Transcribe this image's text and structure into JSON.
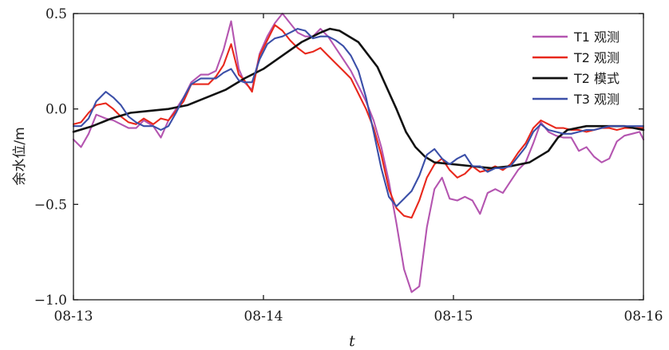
{
  "chart_data": {
    "type": "line",
    "xlabel": "t",
    "ylabel": "余水位/m",
    "xlim": [
      0,
      3
    ],
    "ylim": [
      -1.0,
      0.5
    ],
    "x_ticks": [
      0,
      1,
      2,
      3
    ],
    "x_tick_labels": [
      "08-13",
      "08-14",
      "08-15",
      "08-16"
    ],
    "y_ticks": [
      0.5,
      0.0,
      -0.5,
      -1.0
    ],
    "y_tick_labels": [
      "0.5",
      "0.0",
      "−0.5",
      "−1.0"
    ],
    "legend_position": "top-right",
    "grid": false,
    "series": [
      {
        "name": "T1 观测",
        "color": "#b455b0",
        "points": [
          [
            0,
            -0.16
          ],
          [
            0.04,
            -0.2
          ],
          [
            0.08,
            -0.13
          ],
          [
            0.12,
            -0.03
          ],
          [
            0.17,
            -0.05
          ],
          [
            0.21,
            -0.06
          ],
          [
            0.25,
            -0.08
          ],
          [
            0.29,
            -0.1
          ],
          [
            0.33,
            -0.1
          ],
          [
            0.37,
            -0.06
          ],
          [
            0.42,
            -0.09
          ],
          [
            0.46,
            -0.15
          ],
          [
            0.5,
            -0.06
          ],
          [
            0.54,
            0.0
          ],
          [
            0.58,
            0.06
          ],
          [
            0.62,
            0.14
          ],
          [
            0.67,
            0.18
          ],
          [
            0.71,
            0.18
          ],
          [
            0.75,
            0.2
          ],
          [
            0.79,
            0.31
          ],
          [
            0.83,
            0.46
          ],
          [
            0.87,
            0.21
          ],
          [
            0.9,
            0.14
          ],
          [
            0.94,
            0.1
          ],
          [
            0.98,
            0.29
          ],
          [
            1.02,
            0.38
          ],
          [
            1.06,
            0.45
          ],
          [
            1.1,
            0.5
          ],
          [
            1.14,
            0.45
          ],
          [
            1.18,
            0.4
          ],
          [
            1.22,
            0.38
          ],
          [
            1.26,
            0.38
          ],
          [
            1.3,
            0.42
          ],
          [
            1.34,
            0.38
          ],
          [
            1.38,
            0.32
          ],
          [
            1.42,
            0.26
          ],
          [
            1.46,
            0.2
          ],
          [
            1.5,
            0.12
          ],
          [
            1.54,
            0.04
          ],
          [
            1.58,
            -0.06
          ],
          [
            1.62,
            -0.2
          ],
          [
            1.66,
            -0.38
          ],
          [
            1.7,
            -0.6
          ],
          [
            1.74,
            -0.84
          ],
          [
            1.78,
            -0.96
          ],
          [
            1.82,
            -0.93
          ],
          [
            1.86,
            -0.62
          ],
          [
            1.9,
            -0.42
          ],
          [
            1.94,
            -0.36
          ],
          [
            1.98,
            -0.47
          ],
          [
            2.02,
            -0.48
          ],
          [
            2.06,
            -0.46
          ],
          [
            2.1,
            -0.48
          ],
          [
            2.14,
            -0.55
          ],
          [
            2.18,
            -0.44
          ],
          [
            2.22,
            -0.42
          ],
          [
            2.26,
            -0.44
          ],
          [
            2.3,
            -0.38
          ],
          [
            2.34,
            -0.32
          ],
          [
            2.38,
            -0.28
          ],
          [
            2.42,
            -0.18
          ],
          [
            2.46,
            -0.07
          ],
          [
            2.5,
            -0.12
          ],
          [
            2.54,
            -0.14
          ],
          [
            2.58,
            -0.15
          ],
          [
            2.62,
            -0.15
          ],
          [
            2.66,
            -0.22
          ],
          [
            2.7,
            -0.2
          ],
          [
            2.74,
            -0.25
          ],
          [
            2.78,
            -0.28
          ],
          [
            2.82,
            -0.26
          ],
          [
            2.86,
            -0.17
          ],
          [
            2.9,
            -0.14
          ],
          [
            2.94,
            -0.13
          ],
          [
            2.98,
            -0.12
          ],
          [
            3.0,
            -0.16
          ]
        ]
      },
      {
        "name": "T2 观测",
        "color": "#e8281c",
        "points": [
          [
            0,
            -0.08
          ],
          [
            0.04,
            -0.07
          ],
          [
            0.08,
            -0.02
          ],
          [
            0.12,
            0.02
          ],
          [
            0.17,
            0.03
          ],
          [
            0.21,
            0.0
          ],
          [
            0.25,
            -0.04
          ],
          [
            0.29,
            -0.07
          ],
          [
            0.33,
            -0.08
          ],
          [
            0.37,
            -0.05
          ],
          [
            0.42,
            -0.08
          ],
          [
            0.46,
            -0.05
          ],
          [
            0.5,
            -0.06
          ],
          [
            0.54,
            -0.01
          ],
          [
            0.58,
            0.04
          ],
          [
            0.62,
            0.13
          ],
          [
            0.67,
            0.13
          ],
          [
            0.71,
            0.13
          ],
          [
            0.75,
            0.17
          ],
          [
            0.79,
            0.23
          ],
          [
            0.83,
            0.34
          ],
          [
            0.87,
            0.18
          ],
          [
            0.9,
            0.15
          ],
          [
            0.94,
            0.09
          ],
          [
            0.98,
            0.28
          ],
          [
            1.02,
            0.36
          ],
          [
            1.06,
            0.44
          ],
          [
            1.1,
            0.41
          ],
          [
            1.14,
            0.36
          ],
          [
            1.18,
            0.32
          ],
          [
            1.22,
            0.29
          ],
          [
            1.26,
            0.3
          ],
          [
            1.3,
            0.32
          ],
          [
            1.34,
            0.28
          ],
          [
            1.38,
            0.24
          ],
          [
            1.42,
            0.2
          ],
          [
            1.46,
            0.16
          ],
          [
            1.5,
            0.08
          ],
          [
            1.54,
            0.0
          ],
          [
            1.58,
            -0.1
          ],
          [
            1.62,
            -0.24
          ],
          [
            1.66,
            -0.42
          ],
          [
            1.7,
            -0.52
          ],
          [
            1.74,
            -0.56
          ],
          [
            1.78,
            -0.57
          ],
          [
            1.82,
            -0.48
          ],
          [
            1.86,
            -0.36
          ],
          [
            1.9,
            -0.29
          ],
          [
            1.94,
            -0.26
          ],
          [
            1.98,
            -0.32
          ],
          [
            2.02,
            -0.36
          ],
          [
            2.06,
            -0.34
          ],
          [
            2.1,
            -0.3
          ],
          [
            2.14,
            -0.33
          ],
          [
            2.18,
            -0.32
          ],
          [
            2.22,
            -0.3
          ],
          [
            2.26,
            -0.32
          ],
          [
            2.3,
            -0.29
          ],
          [
            2.34,
            -0.23
          ],
          [
            2.38,
            -0.18
          ],
          [
            2.42,
            -0.1
          ],
          [
            2.46,
            -0.06
          ],
          [
            2.5,
            -0.08
          ],
          [
            2.54,
            -0.1
          ],
          [
            2.58,
            -0.1
          ],
          [
            2.62,
            -0.11
          ],
          [
            2.66,
            -0.11
          ],
          [
            2.7,
            -0.12
          ],
          [
            2.74,
            -0.11
          ],
          [
            2.78,
            -0.1
          ],
          [
            2.82,
            -0.1
          ],
          [
            2.86,
            -0.11
          ],
          [
            2.9,
            -0.1
          ],
          [
            2.94,
            -0.1
          ],
          [
            2.98,
            -0.1
          ],
          [
            3.0,
            -0.1
          ]
        ]
      },
      {
        "name": "T2 模式",
        "color": "#111111",
        "points": [
          [
            0,
            -0.12
          ],
          [
            0.1,
            -0.09
          ],
          [
            0.2,
            -0.05
          ],
          [
            0.3,
            -0.02
          ],
          [
            0.4,
            -0.01
          ],
          [
            0.5,
            0.0
          ],
          [
            0.6,
            0.02
          ],
          [
            0.7,
            0.06
          ],
          [
            0.8,
            0.1
          ],
          [
            0.9,
            0.16
          ],
          [
            1.0,
            0.21
          ],
          [
            1.1,
            0.28
          ],
          [
            1.2,
            0.35
          ],
          [
            1.3,
            0.4
          ],
          [
            1.35,
            0.42
          ],
          [
            1.4,
            0.41
          ],
          [
            1.5,
            0.35
          ],
          [
            1.6,
            0.22
          ],
          [
            1.7,
            0.0
          ],
          [
            1.75,
            -0.12
          ],
          [
            1.8,
            -0.2
          ],
          [
            1.85,
            -0.25
          ],
          [
            1.9,
            -0.28
          ],
          [
            2.0,
            -0.29
          ],
          [
            2.1,
            -0.3
          ],
          [
            2.2,
            -0.31
          ],
          [
            2.3,
            -0.3
          ],
          [
            2.4,
            -0.28
          ],
          [
            2.5,
            -0.22
          ],
          [
            2.55,
            -0.15
          ],
          [
            2.6,
            -0.11
          ],
          [
            2.7,
            -0.09
          ],
          [
            2.8,
            -0.09
          ],
          [
            2.9,
            -0.09
          ],
          [
            3.0,
            -0.11
          ]
        ]
      },
      {
        "name": "T3 观测",
        "color": "#3b4fa8",
        "points": [
          [
            0,
            -0.09
          ],
          [
            0.04,
            -0.09
          ],
          [
            0.08,
            -0.05
          ],
          [
            0.12,
            0.04
          ],
          [
            0.17,
            0.09
          ],
          [
            0.21,
            0.06
          ],
          [
            0.25,
            0.02
          ],
          [
            0.29,
            -0.04
          ],
          [
            0.33,
            -0.07
          ],
          [
            0.37,
            -0.09
          ],
          [
            0.42,
            -0.09
          ],
          [
            0.46,
            -0.11
          ],
          [
            0.5,
            -0.09
          ],
          [
            0.54,
            -0.02
          ],
          [
            0.58,
            0.06
          ],
          [
            0.62,
            0.13
          ],
          [
            0.67,
            0.16
          ],
          [
            0.71,
            0.16
          ],
          [
            0.75,
            0.16
          ],
          [
            0.79,
            0.19
          ],
          [
            0.83,
            0.21
          ],
          [
            0.87,
            0.15
          ],
          [
            0.9,
            0.14
          ],
          [
            0.94,
            0.14
          ],
          [
            0.98,
            0.26
          ],
          [
            1.02,
            0.34
          ],
          [
            1.06,
            0.37
          ],
          [
            1.1,
            0.38
          ],
          [
            1.14,
            0.4
          ],
          [
            1.18,
            0.42
          ],
          [
            1.22,
            0.41
          ],
          [
            1.26,
            0.37
          ],
          [
            1.3,
            0.38
          ],
          [
            1.34,
            0.38
          ],
          [
            1.38,
            0.36
          ],
          [
            1.42,
            0.33
          ],
          [
            1.46,
            0.28
          ],
          [
            1.5,
            0.2
          ],
          [
            1.54,
            0.06
          ],
          [
            1.58,
            -0.12
          ],
          [
            1.62,
            -0.31
          ],
          [
            1.66,
            -0.46
          ],
          [
            1.7,
            -0.51
          ],
          [
            1.74,
            -0.47
          ],
          [
            1.78,
            -0.43
          ],
          [
            1.82,
            -0.35
          ],
          [
            1.86,
            -0.24
          ],
          [
            1.9,
            -0.21
          ],
          [
            1.94,
            -0.26
          ],
          [
            1.98,
            -0.29
          ],
          [
            2.02,
            -0.26
          ],
          [
            2.06,
            -0.24
          ],
          [
            2.1,
            -0.3
          ],
          [
            2.14,
            -0.3
          ],
          [
            2.18,
            -0.33
          ],
          [
            2.22,
            -0.31
          ],
          [
            2.26,
            -0.31
          ],
          [
            2.3,
            -0.3
          ],
          [
            2.34,
            -0.25
          ],
          [
            2.38,
            -0.2
          ],
          [
            2.42,
            -0.12
          ],
          [
            2.46,
            -0.08
          ],
          [
            2.5,
            -0.11
          ],
          [
            2.54,
            -0.12
          ],
          [
            2.58,
            -0.13
          ],
          [
            2.62,
            -0.13
          ],
          [
            2.66,
            -0.12
          ],
          [
            2.7,
            -0.11
          ],
          [
            2.74,
            -0.11
          ],
          [
            2.78,
            -0.1
          ],
          [
            2.82,
            -0.09
          ],
          [
            2.86,
            -0.09
          ],
          [
            2.9,
            -0.09
          ],
          [
            2.94,
            -0.09
          ],
          [
            2.98,
            -0.09
          ],
          [
            3.0,
            -0.09
          ]
        ]
      }
    ]
  }
}
